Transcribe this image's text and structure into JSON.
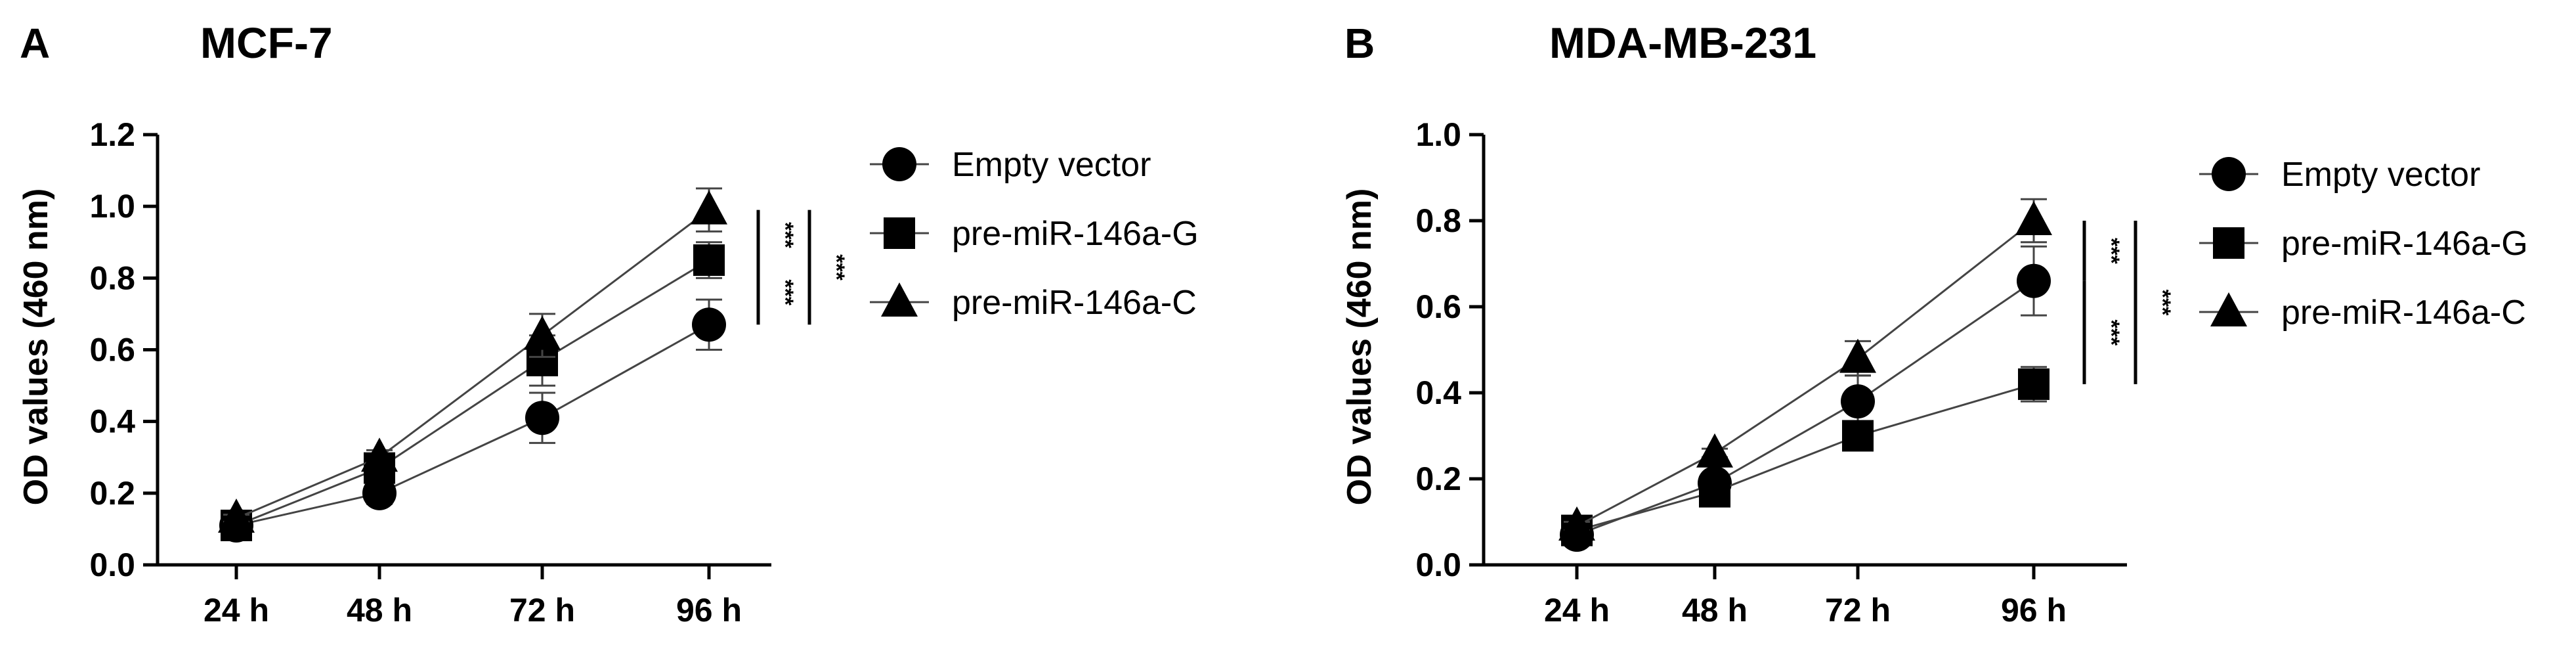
{
  "chart_data": [
    {
      "type": "line",
      "panel_letter": "A",
      "title": "MCF-7",
      "xlabel": "",
      "ylabel": "OD values (460 nm)",
      "categories": [
        "24 h",
        "48 h",
        "72 h",
        "96 h"
      ],
      "ylim": [
        0,
        1.2
      ],
      "yticks": [
        "0.0",
        "0.2",
        "0.4",
        "0.6",
        "0.8",
        "1.0",
        "1.2"
      ],
      "grid": false,
      "legend_position": "right",
      "series": [
        {
          "name": "Empty vector",
          "marker": "circle",
          "values": [
            0.11,
            0.2,
            0.41,
            0.67
          ],
          "errors": [
            0.01,
            0.03,
            0.07,
            0.07
          ]
        },
        {
          "name": "pre-miR-146a-G",
          "marker": "square",
          "values": [
            0.11,
            0.27,
            0.57,
            0.85
          ],
          "errors": [
            0.01,
            0.03,
            0.07,
            0.05
          ]
        },
        {
          "name": "pre-miR-146a-C",
          "marker": "triangle",
          "values": [
            0.13,
            0.3,
            0.64,
            0.99
          ],
          "errors": [
            0.01,
            0.02,
            0.06,
            0.06
          ]
        }
      ],
      "significance": [
        {
          "between": [
            "pre-miR-146a-C",
            "pre-miR-146a-G"
          ],
          "label": "***"
        },
        {
          "between": [
            "pre-miR-146a-G",
            "Empty vector"
          ],
          "label": "***"
        },
        {
          "between": [
            "pre-miR-146a-C",
            "Empty vector"
          ],
          "label": "***"
        }
      ]
    },
    {
      "type": "line",
      "panel_letter": "B",
      "title": "MDA-MB-231",
      "xlabel": "",
      "ylabel": "OD values (460 nm)",
      "categories": [
        "24 h",
        "48 h",
        "72 h",
        "96 h"
      ],
      "ylim": [
        0,
        1.0
      ],
      "yticks": [
        "0.0",
        "0.2",
        "0.4",
        "0.6",
        "0.8",
        "1.0"
      ],
      "grid": false,
      "legend_position": "right",
      "series": [
        {
          "name": "Empty vector",
          "marker": "circle",
          "values": [
            0.07,
            0.19,
            0.38,
            0.66
          ],
          "errors": [
            0.01,
            0.02,
            0.06,
            0.08
          ]
        },
        {
          "name": "pre-miR-146a-G",
          "marker": "square",
          "values": [
            0.08,
            0.17,
            0.3,
            0.42
          ],
          "errors": [
            0.01,
            0.02,
            0.02,
            0.04
          ]
        },
        {
          "name": "pre-miR-146a-C",
          "marker": "triangle",
          "values": [
            0.09,
            0.26,
            0.48,
            0.8
          ],
          "errors": [
            0.01,
            0.01,
            0.04,
            0.05
          ]
        }
      ],
      "significance": [
        {
          "between": [
            "pre-miR-146a-C",
            "Empty vector"
          ],
          "label": "***"
        },
        {
          "between": [
            "Empty vector",
            "pre-miR-146a-G"
          ],
          "label": "***"
        },
        {
          "between": [
            "pre-miR-146a-C",
            "pre-miR-146a-G"
          ],
          "label": "***"
        }
      ]
    }
  ]
}
